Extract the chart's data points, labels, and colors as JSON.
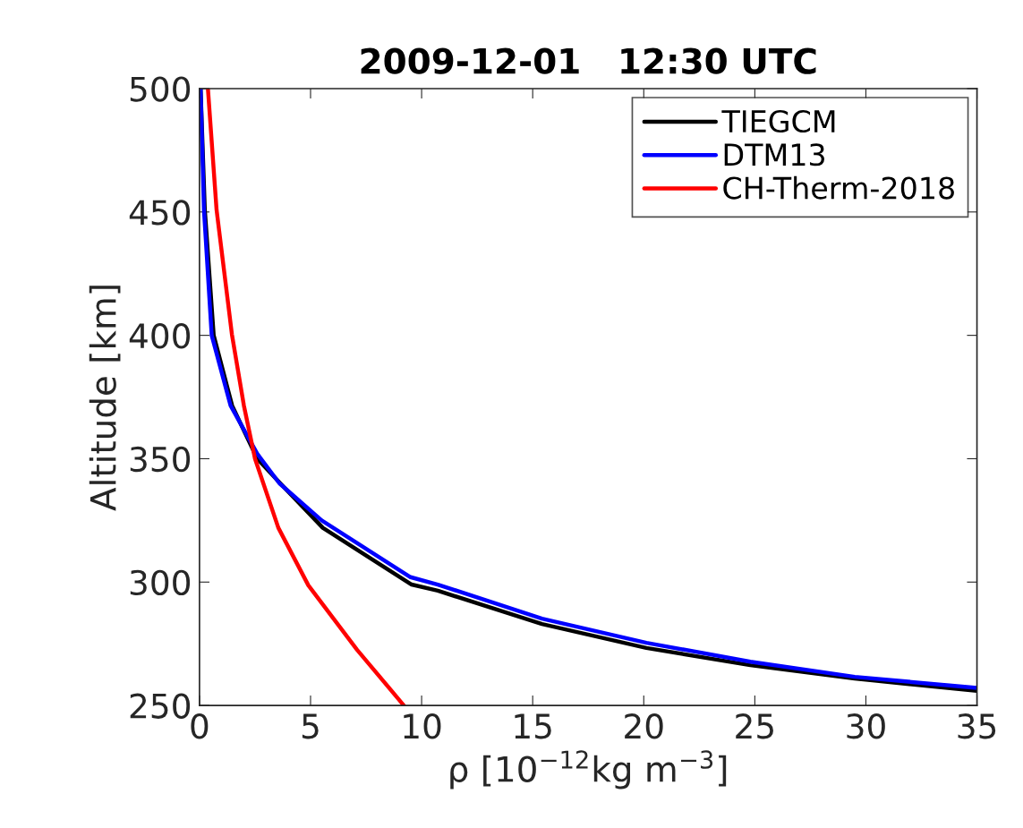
{
  "chart_data": {
    "type": "line",
    "title": "2009-12-01   12:30 UTC",
    "xlabel": "ρ [10$^{−12}$kg m$^{−3}$]",
    "ylabel": "Altitude [km]",
    "xlim": [
      0,
      35
    ],
    "xticks": [
      0,
      5,
      10,
      15,
      20,
      25,
      30,
      35
    ],
    "ylim": [
      250,
      500
    ],
    "yticks": [
      250,
      300,
      350,
      400,
      450,
      500
    ],
    "grid": false,
    "legend": "top right",
    "marker": "none",
    "line_style": "solid",
    "series": [
      {
        "name": "TIEGCM",
        "color": "#000000",
        "x": [
          0.05,
          0.24,
          0.64,
          1.47,
          2.6,
          3.8,
          5.55,
          9.55,
          10.73,
          15.42,
          20.12,
          24.8,
          29.5,
          35
        ],
        "values": [
          500,
          451,
          400,
          371.5,
          350,
          338.5,
          322,
          299,
          296.5,
          283,
          273.3,
          266.3,
          260.9,
          255.9
        ]
      },
      {
        "name": "DTM13",
        "color": "#0000ff",
        "x": [
          0.05,
          0.2,
          0.55,
          1.4,
          2.6,
          3.6,
          5.5,
          9.5,
          10.73,
          15.42,
          20.12,
          24.8,
          29.5,
          35
        ],
        "values": [
          500,
          451,
          400,
          371.5,
          352,
          340,
          325,
          302,
          299,
          285.2,
          275.4,
          267.7,
          261.6,
          257.1
        ]
      },
      {
        "name": "CH-Therm-2018",
        "color": "#ff0000",
        "x": [
          0.38,
          0.77,
          1.46,
          2.0,
          2.5,
          3.55,
          4.9,
          7.1,
          9.2
        ],
        "values": [
          500,
          450.8,
          400.4,
          371.5,
          350,
          322,
          298.7,
          272.5,
          250
        ]
      }
    ]
  }
}
